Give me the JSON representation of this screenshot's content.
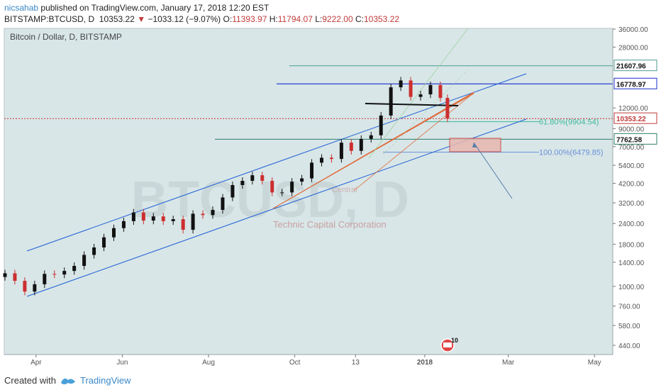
{
  "header": {
    "author": "nicsahab",
    "published_text": "published on TradingView.com, January 17, 2018 12:20 EST",
    "symbol": "BITSTAMP:BTCUSD, D",
    "last": "10353.22",
    "change": "−1033.12 (−9.07%)",
    "open_label": "O:",
    "open": "11393.97",
    "high_label": "H:",
    "high": "11794.07",
    "low_label": "L:",
    "low": "9222.00",
    "close_label": "C:",
    "close": "10353.22"
  },
  "chart_data": {
    "type": "candlestick",
    "title": "Bitcoin / Dollar, D, BITSTAMP",
    "watermark": "BTCUSD, D",
    "watermark_sub": "Technic Capital Corporation",
    "watermark_small": "Central",
    "y_scale": "log",
    "ylim": [
      350,
      40000
    ],
    "y_ticks": [
      "36000.00",
      "28000.00",
      "12000.00",
      "9000.00",
      "7000.00",
      "5400.00",
      "4200.00",
      "3200.00",
      "2400.00",
      "1800.00",
      "1400.00",
      "1000.00",
      "760.00",
      "580.00",
      "440.00"
    ],
    "x_ticks": [
      "Apr",
      "Jun",
      "Aug",
      "Oct",
      "13",
      "2018",
      "Mar",
      "May"
    ],
    "price_labels": [
      {
        "label": "21607.96",
        "value": 21607.96,
        "color": "#4a9c8c"
      },
      {
        "label": "16778.97",
        "value": 16778.97,
        "color": "#1a2ccc"
      },
      {
        "label": "10353.22",
        "value": 10353.22,
        "color": "#c23b3b"
      },
      {
        "label": "7762.58",
        "value": 7762.58,
        "color": "#2e7d6a"
      }
    ],
    "fib_labels": [
      {
        "label": "61.80%(9904.54)",
        "value": 9904.54,
        "color": "#3fb89a"
      },
      {
        "label": "100.00%(6479.85)",
        "value": 6479.85,
        "color": "#6b8fd6"
      }
    ],
    "series": [
      {
        "x": "2017-03-10",
        "y": 1200
      },
      {
        "x": "2017-03-17",
        "y": 1080
      },
      {
        "x": "2017-03-24",
        "y": 930
      },
      {
        "x": "2017-03-31",
        "y": 1030
      },
      {
        "x": "2017-04-07",
        "y": 1190
      },
      {
        "x": "2017-04-14",
        "y": 1180
      },
      {
        "x": "2017-04-21",
        "y": 1240
      },
      {
        "x": "2017-04-28",
        "y": 1330
      },
      {
        "x": "2017-05-05",
        "y": 1550
      },
      {
        "x": "2017-05-12",
        "y": 1720
      },
      {
        "x": "2017-05-19",
        "y": 1980
      },
      {
        "x": "2017-05-26",
        "y": 2250
      },
      {
        "x": "2017-06-02",
        "y": 2480
      },
      {
        "x": "2017-06-09",
        "y": 2800
      },
      {
        "x": "2017-06-16",
        "y": 2500
      },
      {
        "x": "2017-06-23",
        "y": 2650
      },
      {
        "x": "2017-06-30",
        "y": 2480
      },
      {
        "x": "2017-07-07",
        "y": 2550
      },
      {
        "x": "2017-07-14",
        "y": 2200
      },
      {
        "x": "2017-07-21",
        "y": 2750
      },
      {
        "x": "2017-07-28",
        "y": 2700
      },
      {
        "x": "2017-08-04",
        "y": 2900
      },
      {
        "x": "2017-08-11",
        "y": 3450
      },
      {
        "x": "2017-08-18",
        "y": 4100
      },
      {
        "x": "2017-08-25",
        "y": 4350
      },
      {
        "x": "2017-09-01",
        "y": 4700
      },
      {
        "x": "2017-09-08",
        "y": 4350
      },
      {
        "x": "2017-09-15",
        "y": 3700
      },
      {
        "x": "2017-09-22",
        "y": 3700
      },
      {
        "x": "2017-09-29",
        "y": 4300
      },
      {
        "x": "2017-10-06",
        "y": 4500
      },
      {
        "x": "2017-10-13",
        "y": 5600
      },
      {
        "x": "2017-10-20",
        "y": 6000
      },
      {
        "x": "2017-10-27",
        "y": 5900
      },
      {
        "x": "2017-11-03",
        "y": 7400
      },
      {
        "x": "2017-11-10",
        "y": 6600
      },
      {
        "x": "2017-11-17",
        "y": 7800
      },
      {
        "x": "2017-11-24",
        "y": 8200
      },
      {
        "x": "2017-12-01",
        "y": 10800
      },
      {
        "x": "2017-12-08",
        "y": 16000
      },
      {
        "x": "2017-12-15",
        "y": 17600
      },
      {
        "x": "2017-12-22",
        "y": 14000
      },
      {
        "x": "2017-12-29",
        "y": 14500
      },
      {
        "x": "2018-01-05",
        "y": 16500
      },
      {
        "x": "2018-01-12",
        "y": 13800
      },
      {
        "x": "2018-01-17",
        "y": 10353.22
      }
    ]
  },
  "footer": {
    "created_with": "Created with",
    "brand": "TradingView"
  },
  "colors": {
    "background": "#d8e6e8",
    "up": "#111111",
    "down": "#cc2f2f",
    "channel": "#1f5fd4",
    "orange_channel": "#e06a3a"
  }
}
